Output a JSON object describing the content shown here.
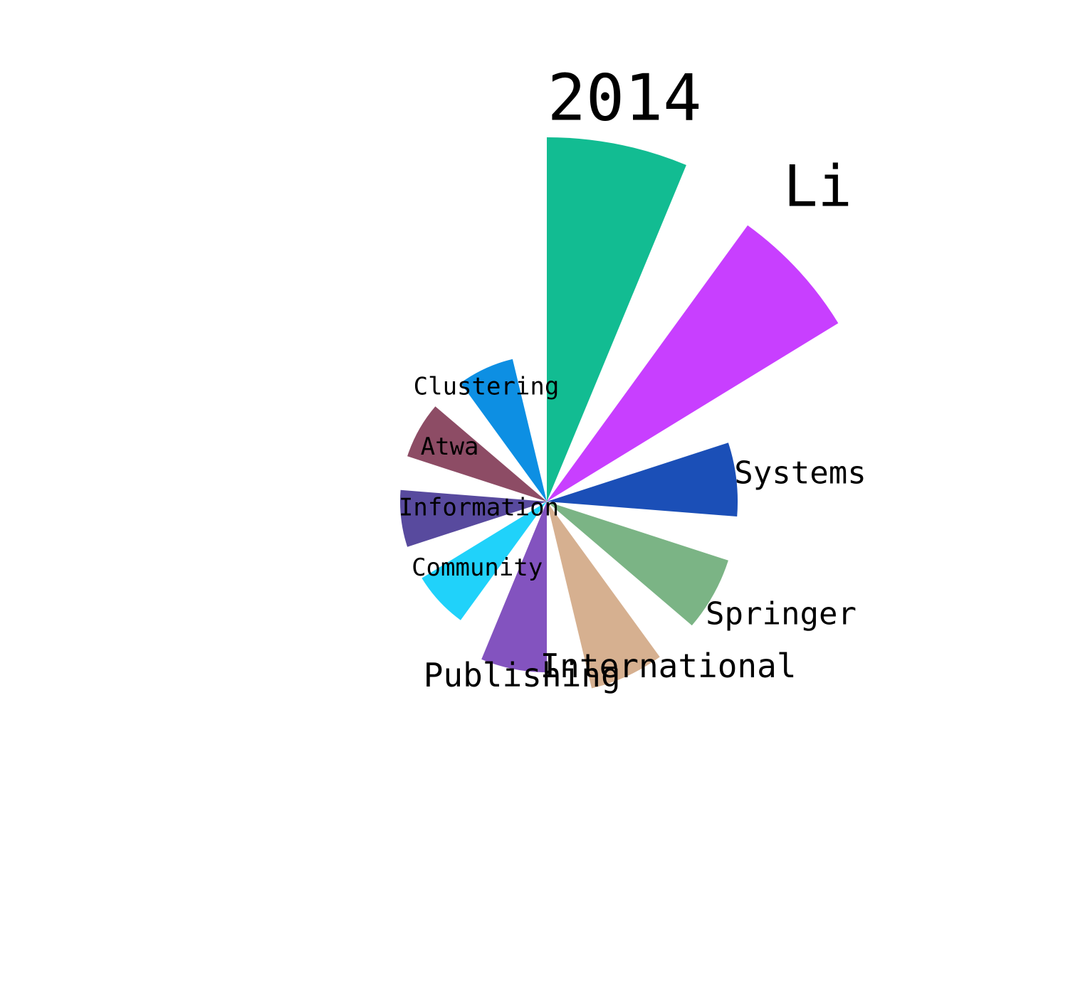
{
  "chart_data": {
    "type": "nightingale_rose",
    "segments": [
      {
        "label": "2014",
        "value": 512,
        "color": "#12BC92"
      },
      {
        "label": "Li",
        "value": 480,
        "color": "#C83FFF"
      },
      {
        "label": "Systems",
        "value": 268,
        "color": "#1B4FB7"
      },
      {
        "label": "Springer",
        "value": 268,
        "color": "#7BB485"
      },
      {
        "label": "International",
        "value": 270,
        "color": "#D6B090"
      },
      {
        "label": "Publishing",
        "value": 240,
        "color": "#8353BF"
      },
      {
        "label": "Community",
        "value": 206,
        "color": "#20D2FA"
      },
      {
        "label": "Information",
        "value": 206,
        "color": "#584A9E"
      },
      {
        "label": "Atwa",
        "value": 206,
        "color": "#8D4C65"
      },
      {
        "label": "Clustering",
        "value": 206,
        "color": "#0D8FE3"
      }
    ]
  }
}
